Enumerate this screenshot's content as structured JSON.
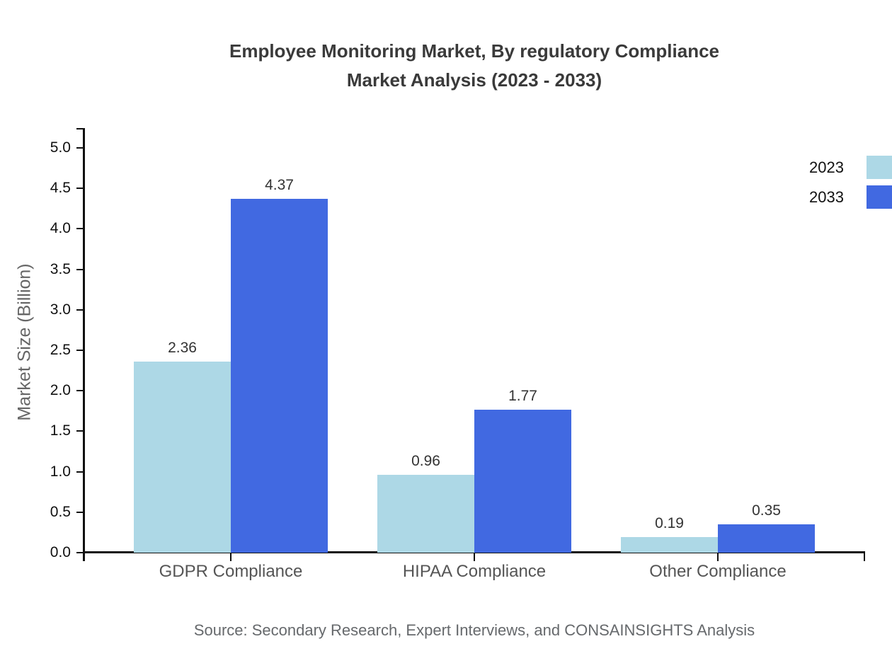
{
  "title": {
    "line1": "Employee Monitoring Market, By regulatory Compliance",
    "line2": "Market Analysis (2023 - 2033)"
  },
  "source": "Source: Secondary Research, Expert Interviews, and CONSAINSIGHTS Analysis",
  "legend": {
    "items": [
      {
        "label": "2023",
        "color": "#ADD8E6"
      },
      {
        "label": "2033",
        "color": "#4169E1"
      }
    ]
  },
  "chart_data": {
    "type": "bar",
    "title": "Employee Monitoring Market, By regulatory Compliance Market Analysis (2023 - 2033)",
    "categories": [
      "GDPR Compliance",
      "HIPAA Compliance",
      "Other Compliance"
    ],
    "series": [
      {
        "name": "2023",
        "color": "#ADD8E6",
        "values": [
          2.36,
          0.96,
          0.19
        ]
      },
      {
        "name": "2033",
        "color": "#4169E1",
        "values": [
          4.37,
          1.77,
          0.35
        ]
      }
    ],
    "value_labels": [
      [
        "2.36",
        "0.96",
        "0.19"
      ],
      [
        "4.37",
        "1.77",
        "0.35"
      ]
    ],
    "xlabel": "",
    "ylabel": "Market Size (Billion)",
    "ylim": [
      0.0,
      5.0
    ],
    "yticks": [
      "0.0",
      "0.5",
      "1.0",
      "1.5",
      "2.0",
      "2.5",
      "3.0",
      "3.5",
      "4.0",
      "4.5",
      "5.0"
    ],
    "grid": false,
    "legend_position": "upper-right-outside",
    "bar_edge_color": "none",
    "background": "#ffffff"
  }
}
